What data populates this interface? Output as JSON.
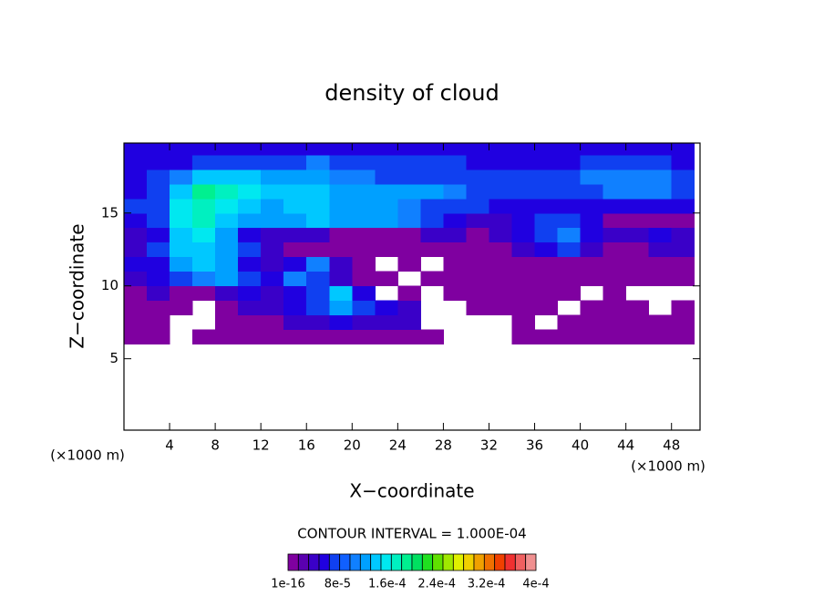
{
  "chart_data": {
    "type": "heatmap",
    "title": "density of cloud",
    "xlabel": "X−coordinate",
    "ylabel": "Z−coordinate",
    "axis_unit": "(×1000 m)",
    "note": "CONTOUR INTERVAL = 1.000E-04",
    "xlim": [
      0,
      50.5
    ],
    "ylim": [
      0.1,
      19.8
    ],
    "xticks": [
      4,
      8,
      12,
      16,
      20,
      24,
      28,
      32,
      36,
      40,
      44,
      48
    ],
    "yticks": [
      5,
      10,
      15
    ],
    "x": [
      1,
      3,
      5,
      7,
      9,
      11,
      13,
      15,
      17,
      19,
      21,
      23,
      25,
      27,
      29,
      31,
      33,
      35,
      37,
      39,
      41,
      43,
      45,
      47,
      49
    ],
    "y": [
      6.5,
      7.5,
      8.5,
      9.5,
      10.5,
      11.5,
      12.5,
      13.5,
      14.5,
      15.5,
      16.5,
      17.5,
      18.5,
      19.5
    ],
    "z": [
      [
        1e-05,
        1e-05,
        0,
        1e-05,
        1e-05,
        1e-05,
        1e-05,
        1e-05,
        1e-05,
        1e-05,
        1e-05,
        1e-05,
        1e-05,
        1e-05,
        0,
        0,
        0,
        1e-05,
        1e-05,
        1e-05,
        1e-05,
        1e-05,
        1e-05,
        1e-05,
        1e-05
      ],
      [
        1e-05,
        1e-05,
        0,
        0,
        1e-05,
        1e-05,
        1e-05,
        4e-05,
        4e-05,
        6e-05,
        4e-05,
        4e-05,
        4e-05,
        0,
        0,
        0,
        0,
        1e-05,
        0,
        1e-05,
        1e-05,
        1e-05,
        1e-05,
        1e-05,
        1e-05
      ],
      [
        1e-05,
        1e-05,
        1e-05,
        0,
        1e-05,
        4e-05,
        4e-05,
        6e-05,
        8e-05,
        0.00012,
        8e-05,
        6e-05,
        4e-05,
        0,
        0,
        1e-05,
        1e-05,
        1e-05,
        1e-05,
        0,
        1e-05,
        1e-05,
        1e-05,
        0,
        1e-05
      ],
      [
        1e-05,
        4e-05,
        1e-05,
        1e-05,
        4e-05,
        6e-05,
        4e-05,
        6e-05,
        8e-05,
        0.00014,
        6e-05,
        0,
        1e-05,
        0,
        1e-05,
        1e-05,
        1e-05,
        1e-05,
        1e-05,
        1e-05,
        0,
        1e-05,
        0,
        0,
        0
      ],
      [
        4e-05,
        6e-05,
        8e-05,
        0.00011,
        0.00012,
        8e-05,
        6e-05,
        0.0001,
        8e-05,
        4e-05,
        1e-05,
        1e-05,
        0,
        1e-05,
        1e-05,
        1e-05,
        1e-05,
        1e-05,
        1e-05,
        1e-05,
        1e-05,
        1e-05,
        1e-05,
        1e-05,
        1e-05
      ],
      [
        6e-05,
        6e-05,
        0.00012,
        0.00014,
        0.00012,
        6e-05,
        4e-05,
        6e-05,
        0.0001,
        4e-05,
        1e-05,
        0,
        1e-05,
        0,
        1e-05,
        1e-05,
        1e-05,
        1e-05,
        1e-05,
        1e-05,
        1e-05,
        1e-05,
        1e-05,
        1e-05,
        1e-05
      ],
      [
        4e-05,
        8e-05,
        0.00014,
        0.00015,
        0.00012,
        8e-05,
        4e-05,
        1e-05,
        1e-05,
        1e-05,
        1e-05,
        1e-05,
        1e-05,
        1e-05,
        1e-05,
        1e-05,
        1e-05,
        4e-05,
        6e-05,
        8e-05,
        4e-05,
        1e-05,
        1e-05,
        4e-05,
        4e-05
      ],
      [
        4e-05,
        6e-05,
        0.00015,
        0.00016,
        0.00012,
        6e-05,
        4e-05,
        4e-05,
        4e-05,
        1e-05,
        1e-05,
        1e-05,
        1e-05,
        4e-05,
        4e-05,
        1e-05,
        4e-05,
        6e-05,
        8e-05,
        0.00011,
        6e-05,
        4e-05,
        4e-05,
        6e-05,
        4e-05
      ],
      [
        6e-05,
        8e-05,
        0.00016,
        0.00018,
        0.00014,
        0.00012,
        0.00012,
        0.00013,
        0.00014,
        0.00012,
        0.00013,
        0.00012,
        0.0001,
        8e-05,
        6e-05,
        4e-05,
        4e-05,
        6e-05,
        8e-05,
        8e-05,
        6e-05,
        1e-05,
        1e-05,
        1e-05,
        1e-05
      ],
      [
        8e-05,
        8e-05,
        0.00016,
        0.00018,
        0.00016,
        0.00014,
        0.00012,
        0.00014,
        0.00014,
        0.00013,
        0.00012,
        0.00012,
        0.00011,
        8e-05,
        8e-05,
        8e-05,
        6e-05,
        6e-05,
        6e-05,
        6e-05,
        6e-05,
        6e-05,
        6e-05,
        6e-05,
        6e-05
      ],
      [
        6e-05,
        8e-05,
        0.00015,
        0.00019,
        0.00018,
        0.00016,
        0.00015,
        0.00014,
        0.00014,
        0.00012,
        0.00012,
        0.00012,
        0.00012,
        0.00012,
        0.0001,
        8e-05,
        8e-05,
        8e-05,
        8e-05,
        8e-05,
        8e-05,
        0.0001,
        0.00011,
        0.0001,
        8e-05
      ],
      [
        6e-05,
        8e-05,
        0.0001,
        0.00014,
        0.00015,
        0.00014,
        0.00012,
        0.00012,
        0.00012,
        0.00011,
        0.0001,
        8e-05,
        8e-05,
        8e-05,
        8e-05,
        8e-05,
        8e-05,
        8e-05,
        8e-05,
        8e-05,
        0.0001,
        0.00011,
        0.00011,
        0.0001,
        8e-05
      ],
      [
        6e-05,
        6e-05,
        6e-05,
        8e-05,
        8e-05,
        8e-05,
        8e-05,
        8e-05,
        0.0001,
        8e-05,
        8e-05,
        8e-05,
        8e-05,
        8e-05,
        8e-05,
        6e-05,
        6e-05,
        6e-05,
        6e-05,
        6e-05,
        8e-05,
        8e-05,
        8e-05,
        8e-05,
        6e-05
      ],
      [
        6e-05,
        6e-05,
        6e-05,
        6e-05,
        6e-05,
        6e-05,
        6e-05,
        6e-05,
        6e-05,
        6e-05,
        6e-05,
        6e-05,
        6e-05,
        6e-05,
        6e-05,
        6e-05,
        6e-05,
        6e-05,
        6e-05,
        6e-05,
        6e-05,
        6e-05,
        6e-05,
        6e-05,
        6e-05
      ]
    ],
    "colorbar": {
      "lim": [
        0,
        0.0004
      ],
      "colors": [
        "#7f00a0",
        "#5a00b0",
        "#3a00c8",
        "#2000e0",
        "#1040f0",
        "#1060ff",
        "#1080ff",
        "#00a0ff",
        "#00c8ff",
        "#00e8f0",
        "#00f0c0",
        "#00f090",
        "#00e060",
        "#20e020",
        "#60e000",
        "#a0e800",
        "#e0f000",
        "#f0d000",
        "#f0a000",
        "#f07000",
        "#f04000",
        "#f03030",
        "#f06060",
        "#f09090"
      ],
      "ticks": [
        {
          "value": 1e-16,
          "label": "1e-16"
        },
        {
          "value": 8e-05,
          "label": "8e-5"
        },
        {
          "value": 0.00016,
          "label": "1.6e-4"
        },
        {
          "value": 0.00024,
          "label": "2.4e-4"
        },
        {
          "value": 0.00032,
          "label": "3.2e-4"
        },
        {
          "value": 0.0004,
          "label": "4e-4"
        }
      ]
    }
  }
}
